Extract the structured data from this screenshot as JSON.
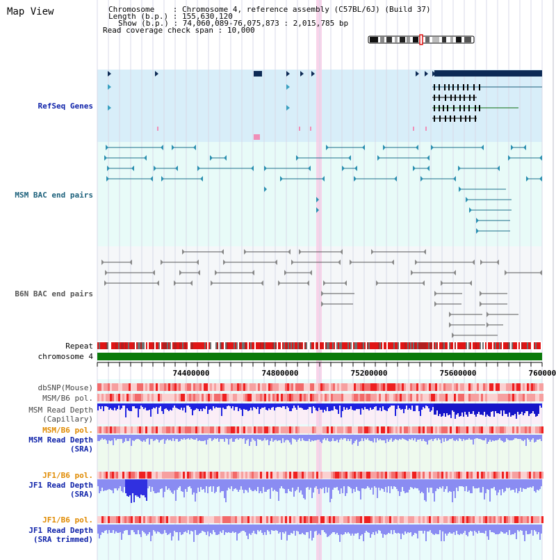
{
  "title": "Map View",
  "header": {
    "chromosome_label": "Chromosome",
    "chromosome_value": "Chromosome 4, reference assembly (C57BL/6J) (Build 37)",
    "length_label": "Length (b.p.)",
    "length_value": "155,630,120",
    "show_label": "Show (b.p.)",
    "show_value": "74,060,089-76,075,873 : 2,015,785 bp",
    "coverage_label": "Read coverage check span",
    "coverage_value": "10,000"
  },
  "tracks": {
    "refseq": "RefSeq Genes",
    "msm_bac": "MSM BAC end pairs",
    "b6n_bac": "B6N BAC end pairs",
    "repeat": "Repeat",
    "chromosome": "chromosome 4",
    "dbsnp": "dbSNP(Mouse)",
    "msm_b6_pol_1": "MSM/B6 pol.",
    "msm_read_depth_cap_1": "MSM Read Depth",
    "msm_read_depth_cap_2": "(Capillary)",
    "msm_b6_pol_2": "MSM/B6 pol.",
    "msm_read_depth_sra_1": "MSM Read Depth",
    "msm_read_depth_sra_2": "(SRA)",
    "jf1_b6_pol_1": "JF1/B6 pol.",
    "jf1_read_depth_sra_1": "JF1 Read Depth",
    "jf1_read_depth_sra_2": "(SRA)",
    "jf1_b6_pol_2": "JF1/B6 pol.",
    "jf1_read_depth_trim_1": "JF1 Read Depth",
    "jf1_read_depth_trim_2": "(SRA trimmed)"
  },
  "axis": {
    "ticks": [
      "74400000",
      "74800000",
      "75200000",
      "75600000",
      "76000000"
    ]
  },
  "colors": {
    "refseq_label": "#0b1fa8",
    "msm_label": "#1a5f7a",
    "b6n_label": "#555555",
    "pol_label": "#e08a00",
    "read_depth_label": "#0b1fa8",
    "refseq_bg": "#d8eef9",
    "msm_bg": "#e8fbf8",
    "b6n_bg": "#f5f7f9",
    "lower_bg": "#eafcfb",
    "gene_dark": "#0d2a55",
    "chromosome_green": "#0a7a0a",
    "depth_blue": "#1f22e0",
    "depth_light": "#8a8cf2",
    "pol_red": "#ef3030",
    "highlight_pink": "#f8cde6"
  }
}
